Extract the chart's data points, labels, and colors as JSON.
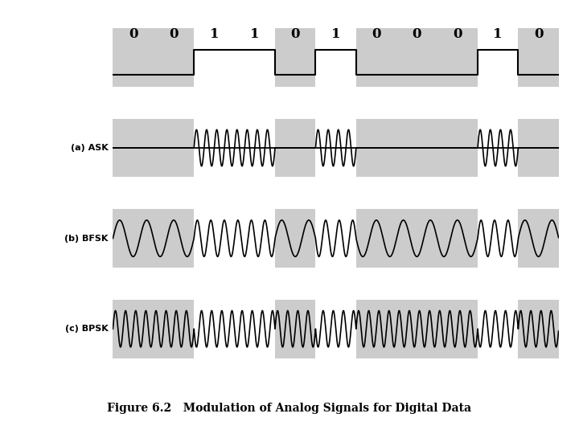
{
  "bits": [
    0,
    0,
    1,
    1,
    0,
    1,
    0,
    0,
    0,
    1,
    0
  ],
  "n_bits": 11,
  "samples_per_bit": 200,
  "background_color": "#ffffff",
  "stripe_color": "#cccccc",
  "signal_color": "#000000",
  "title": "Figure 6.2   Modulation of Analog Signals for Digital Data",
  "title_fontsize": 10,
  "label_fontsize": 8,
  "bit_label_fontsize": 12,
  "ask_freq": 4.0,
  "bfsk_freq_0": 1.5,
  "bfsk_freq_1": 3.0,
  "bpsk_freq": 4.0,
  "fig_width": 7.2,
  "fig_height": 5.4,
  "dpi": 100
}
